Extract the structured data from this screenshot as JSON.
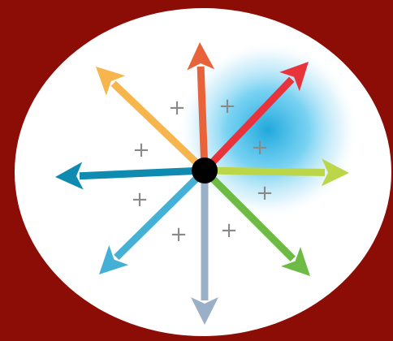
{
  "colors": {
    "background": "#8b0d05",
    "ellipse": "#ffffff",
    "center_dot": "#000000",
    "plus_sign": "#8a8a8a",
    "glow": "#29b6e6"
  },
  "arrows": [
    {
      "name": "north",
      "color": "#e8633a"
    },
    {
      "name": "northeast",
      "color": "#e8333d"
    },
    {
      "name": "east",
      "color": "#bcd64a"
    },
    {
      "name": "southeast",
      "color": "#6dbb45"
    },
    {
      "name": "south",
      "color": "#9ab0c6"
    },
    {
      "name": "southwest",
      "color": "#45b0d6"
    },
    {
      "name": "west",
      "color": "#0f8ab0"
    },
    {
      "name": "northwest",
      "color": "#f7b54e"
    }
  ],
  "plus_symbols": [
    {
      "label": "+"
    },
    {
      "label": "+"
    },
    {
      "label": "+"
    },
    {
      "label": "+"
    },
    {
      "label": "+"
    },
    {
      "label": "+"
    },
    {
      "label": "+"
    },
    {
      "label": "+"
    }
  ]
}
